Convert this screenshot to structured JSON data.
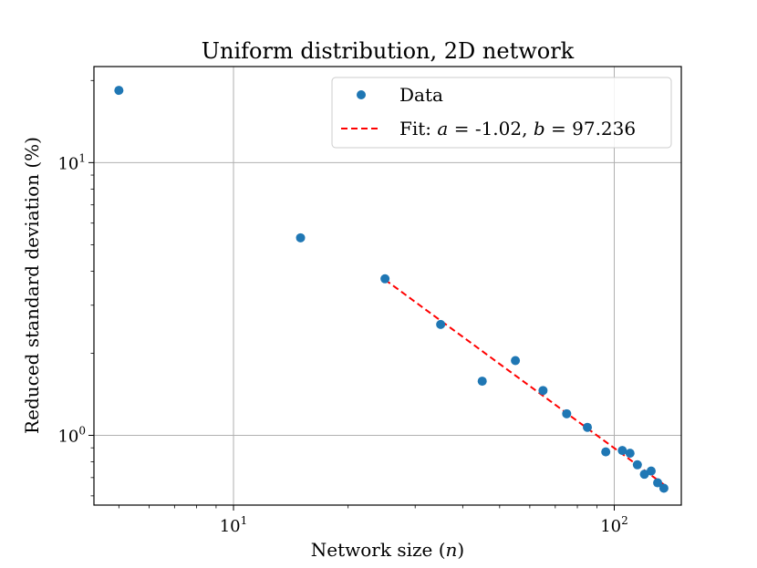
{
  "chart_data": {
    "type": "scatter",
    "title": "Uniform distribution, 2D network",
    "xlabel_text": "Network size (",
    "xlabel_var": "n",
    "xlabel_close": ")",
    "ylabel": "Reduced standard deviation (%)",
    "xscale": "log",
    "yscale": "log",
    "xlim": [
      4.3,
      150
    ],
    "ylim": [
      0.555,
      22.5
    ],
    "grid": true,
    "legend_position": "top-right",
    "x_ticks": [
      {
        "value": 10,
        "base": "10",
        "exp": "1"
      },
      {
        "value": 100,
        "base": "10",
        "exp": "2"
      }
    ],
    "y_ticks": [
      {
        "value": 1,
        "base": "10",
        "exp": "0"
      },
      {
        "value": 10,
        "base": "10",
        "exp": "1"
      }
    ],
    "series": [
      {
        "name": "Data",
        "kind": "points",
        "color": "#1f77b4",
        "x": [
          5,
          15,
          25,
          35,
          45,
          55,
          65,
          75,
          85,
          95,
          105,
          110,
          115,
          120,
          125,
          130,
          135
        ],
        "y": [
          18.4,
          5.3,
          3.75,
          2.55,
          1.58,
          1.88,
          1.46,
          1.2,
          1.07,
          0.87,
          0.88,
          0.86,
          0.78,
          0.72,
          0.74,
          0.67,
          0.64
        ]
      },
      {
        "kind": "fit-line",
        "color": "#ff0000",
        "dash": "dashed",
        "x": [
          25,
          135
        ],
        "y": [
          3.72,
          0.66
        ],
        "legend_prefix": "Fit: ",
        "legend_a_var": "a",
        "legend_a_eq": " = -1.02, ",
        "legend_b_var": "b",
        "legend_b_eq": " = 97.236"
      }
    ]
  }
}
